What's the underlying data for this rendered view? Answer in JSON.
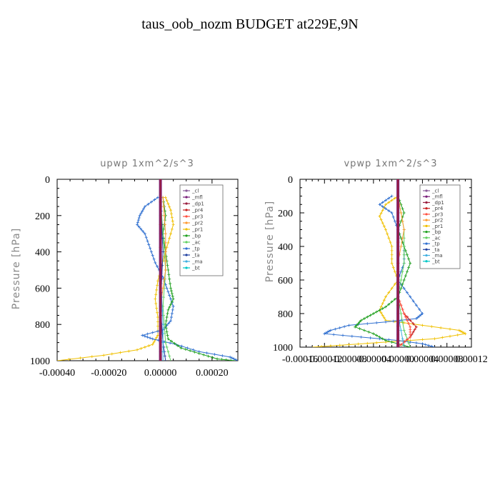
{
  "figure": {
    "title": "taus_oob_nozm  BUDGET at229E,9N"
  },
  "legend_entries": [
    "_cl",
    "_mfl",
    "_dp1",
    "_pr4",
    "_pr3",
    "_pr2",
    "_pr1",
    "_bp",
    "_ac",
    "_tp",
    "_ta",
    "_ma",
    "_bt"
  ],
  "colors": {
    "_cl": "#8a5a9a",
    "_mfl": "#7a1f7a",
    "_dp1": "#9a1f3f",
    "_pr4": "#c82020",
    "_pr3": "#ff5040",
    "_pr2": "#ff9a30",
    "_pr1": "#f0c000",
    "_bp": "#20a020",
    "_ac": "#60d060",
    "_tp": "#3070d0",
    "_ta": "#2040a0",
    "_ma": "#40b0e0",
    "_bt": "#00c8c8"
  },
  "chart_data": [
    {
      "type": "line",
      "title": "upwp   1xm^2/s^3",
      "ylabel": "Pressure [hPa]",
      "xlabel": "",
      "xlim": [
        -0.0004,
        0.0003
      ],
      "ylim": [
        1000,
        0
      ],
      "xticks": [
        -0.0004,
        -0.0002,
        0.0,
        0.0002
      ],
      "xtick_labels": [
        "-0.00040",
        "-0.00020",
        "0.00000",
        "0.00020"
      ],
      "yticks": [
        0,
        200,
        400,
        600,
        800,
        1000
      ],
      "ytick_labels": [
        "0",
        "200",
        "400",
        "600",
        "800",
        "1000"
      ],
      "legend": "right-inside",
      "series": [
        {
          "name": "_pr1",
          "points": [
            [
              2e-05,
              100
            ],
            [
              4e-05,
              170
            ],
            [
              5e-05,
              250
            ],
            [
              3e-05,
              350
            ],
            [
              1e-05,
              450
            ],
            [
              -1e-05,
              560
            ],
            [
              -2e-05,
              660
            ],
            [
              -1e-05,
              760
            ],
            [
              -1e-05,
              860
            ],
            [
              -3e-05,
              910
            ],
            [
              -9e-05,
              940
            ],
            [
              -0.00022,
              970
            ],
            [
              -0.0004,
              1000
            ]
          ]
        },
        {
          "name": "_tp",
          "points": [
            [
              -1e-05,
              100
            ],
            [
              -6e-05,
              150
            ],
            [
              -8e-05,
              200
            ],
            [
              -9e-05,
              250
            ],
            [
              -6e-05,
              300
            ],
            [
              -4e-05,
              380
            ],
            [
              -2e-05,
              460
            ],
            [
              1e-05,
              540
            ],
            [
              3e-05,
              620
            ],
            [
              5e-05,
              700
            ],
            [
              4e-05,
              780
            ],
            [
              1e-05,
              830
            ],
            [
              -7e-05,
              860
            ],
            [
              -3e-05,
              880
            ],
            [
              6e-05,
              910
            ],
            [
              0.00015,
              950
            ],
            [
              0.00027,
              980
            ],
            [
              0.0003,
              1000
            ]
          ]
        },
        {
          "name": "_bp",
          "points": [
            [
              1e-05,
              100
            ],
            [
              2e-05,
              200
            ],
            [
              1e-05,
              300
            ],
            [
              2e-05,
              400
            ],
            [
              3e-05,
              500
            ],
            [
              4e-05,
              600
            ],
            [
              5e-05,
              660
            ],
            [
              3e-05,
              720
            ],
            [
              2e-05,
              800
            ],
            [
              3e-05,
              880
            ],
            [
              8e-05,
              930
            ],
            [
              0.00015,
              960
            ],
            [
              0.00022,
              990
            ],
            [
              0.00029,
              1000
            ]
          ]
        },
        {
          "name": "_ac",
          "points": [
            [
              0.0,
              100
            ],
            [
              1e-05,
              300
            ],
            [
              2e-05,
              500
            ],
            [
              1e-05,
              700
            ],
            [
              2e-05,
              900
            ],
            [
              4e-05,
              1000
            ]
          ]
        },
        {
          "name": "_pr2",
          "points": [
            [
              1e-05,
              100
            ],
            [
              2e-05,
              300
            ],
            [
              2e-05,
              500
            ],
            [
              0.0,
              700
            ],
            [
              0.0,
              900
            ],
            [
              0.0,
              1000
            ]
          ]
        },
        {
          "name": "_ta",
          "points": [
            [
              0.0,
              100
            ],
            [
              1e-05,
              400
            ],
            [
              0.0,
              700
            ],
            [
              1e-05,
              900
            ],
            [
              2e-05,
              1000
            ]
          ]
        },
        {
          "name": "_ma",
          "points": [
            [
              0.0,
              100
            ],
            [
              0.0,
              500
            ],
            [
              1e-05,
              800
            ],
            [
              1e-05,
              1000
            ]
          ]
        },
        {
          "name": "_cl",
          "points": [
            [
              0.0,
              0
            ],
            [
              0.0,
              500
            ],
            [
              0.0,
              1000
            ]
          ]
        },
        {
          "name": "_mfl",
          "points": [
            [
              0.0,
              0
            ],
            [
              0.0,
              500
            ],
            [
              0.0,
              1000
            ]
          ]
        },
        {
          "name": "_dp1",
          "points": [
            [
              0.0,
              0
            ],
            [
              0.0,
              500
            ],
            [
              0.0,
              1000
            ]
          ]
        }
      ]
    },
    {
      "type": "line",
      "title": "vpwp   1xm^2/s^3",
      "ylabel": "Pressure [hPa]",
      "xlabel": "",
      "xlim": [
        -0.00016,
        0.00012
      ],
      "ylim": [
        1000,
        0
      ],
      "xticks": [
        -0.00016,
        -0.00012,
        -8e-05,
        -4e-05,
        0.0,
        4e-05,
        8e-05,
        0.00012
      ],
      "xtick_labels": [
        "-0.00016",
        "-0.00012",
        "-0.00008",
        "-0.00004",
        "0.00000",
        "0.00004",
        "0.00008",
        "0.00012"
      ],
      "yticks": [
        0,
        200,
        400,
        600,
        800,
        1000
      ],
      "ytick_labels": [
        "0",
        "200",
        "400",
        "600",
        "800",
        "1000"
      ],
      "legend": "right-inside",
      "series": [
        {
          "name": "_pr1",
          "points": [
            [
              0.0,
              100
            ],
            [
              -2e-05,
              150
            ],
            [
              -3e-05,
              220
            ],
            [
              -2e-05,
              300
            ],
            [
              -1e-05,
              400
            ],
            [
              -1e-05,
              500
            ],
            [
              0.0,
              600
            ],
            [
              -2e-05,
              700
            ],
            [
              -3e-05,
              780
            ],
            [
              -2e-05,
              840
            ],
            [
              4e-05,
              870
            ],
            [
              0.0001,
              900
            ],
            [
              0.00011,
              920
            ],
            [
              6e-05,
              950
            ],
            [
              -2e-05,
              970
            ],
            [
              -8e-05,
              985
            ],
            [
              -0.00014,
              1000
            ]
          ]
        },
        {
          "name": "_tp",
          "points": [
            [
              -1e-05,
              100
            ],
            [
              -3e-05,
              150
            ],
            [
              -1e-05,
              200
            ],
            [
              0.0,
              300
            ],
            [
              1e-05,
              400
            ],
            [
              1e-05,
              500
            ],
            [
              0.0,
              600
            ],
            [
              2e-05,
              700
            ],
            [
              4e-05,
              800
            ],
            [
              3e-05,
              830
            ],
            [
              -2e-05,
              850
            ],
            [
              -8e-05,
              870
            ],
            [
              -0.00011,
              900
            ],
            [
              -0.00012,
              920
            ],
            [
              -6e-05,
              940
            ],
            [
              0.0,
              960
            ],
            [
              4e-05,
              980
            ],
            [
              6e-05,
              1000
            ]
          ]
        },
        {
          "name": "_bp",
          "points": [
            [
              0.0,
              100
            ],
            [
              1e-05,
              200
            ],
            [
              0.0,
              300
            ],
            [
              1e-05,
              400
            ],
            [
              2e-05,
              500
            ],
            [
              1e-05,
              600
            ],
            [
              0.0,
              700
            ],
            [
              -2e-05,
              760
            ],
            [
              -4e-05,
              800
            ],
            [
              -6e-05,
              840
            ],
            [
              -7e-05,
              880
            ],
            [
              -4e-05,
              920
            ],
            [
              -2e-05,
              960
            ],
            [
              2e-05,
              1000
            ]
          ]
        },
        {
          "name": "_ac",
          "points": [
            [
              0.0,
              100
            ],
            [
              1e-05,
              300
            ],
            [
              1e-05,
              500
            ],
            [
              0.0,
              700
            ],
            [
              1e-05,
              900
            ],
            [
              2e-05,
              1000
            ]
          ]
        },
        {
          "name": "_pr2",
          "points": [
            [
              0.0,
              100
            ],
            [
              1e-05,
              300
            ],
            [
              0.0,
              500
            ],
            [
              0.0,
              700
            ],
            [
              0.0,
              900
            ],
            [
              0.0,
              1000
            ]
          ]
        },
        {
          "name": "_pr4",
          "points": [
            [
              0.0,
              700
            ],
            [
              1e-05,
              800
            ],
            [
              3e-05,
              880
            ],
            [
              2e-05,
              940
            ],
            [
              0.0,
              1000
            ]
          ]
        },
        {
          "name": "_pr3",
          "points": [
            [
              0.0,
              700
            ],
            [
              1e-05,
              800
            ],
            [
              2e-05,
              880
            ],
            [
              2e-05,
              940
            ],
            [
              0.0,
              1000
            ]
          ]
        },
        {
          "name": "_ma",
          "points": [
            [
              0.0,
              100
            ],
            [
              0.0,
              500
            ],
            [
              0.0,
              800
            ],
            [
              1e-05,
              1000
            ]
          ]
        },
        {
          "name": "_cl",
          "points": [
            [
              0.0,
              0
            ],
            [
              0.0,
              500
            ],
            [
              0.0,
              1000
            ]
          ]
        },
        {
          "name": "_mfl",
          "points": [
            [
              0.0,
              0
            ],
            [
              0.0,
              500
            ],
            [
              0.0,
              1000
            ]
          ]
        },
        {
          "name": "_dp1",
          "points": [
            [
              0.0,
              0
            ],
            [
              0.0,
              500
            ],
            [
              0.0,
              1000
            ]
          ]
        }
      ]
    }
  ]
}
